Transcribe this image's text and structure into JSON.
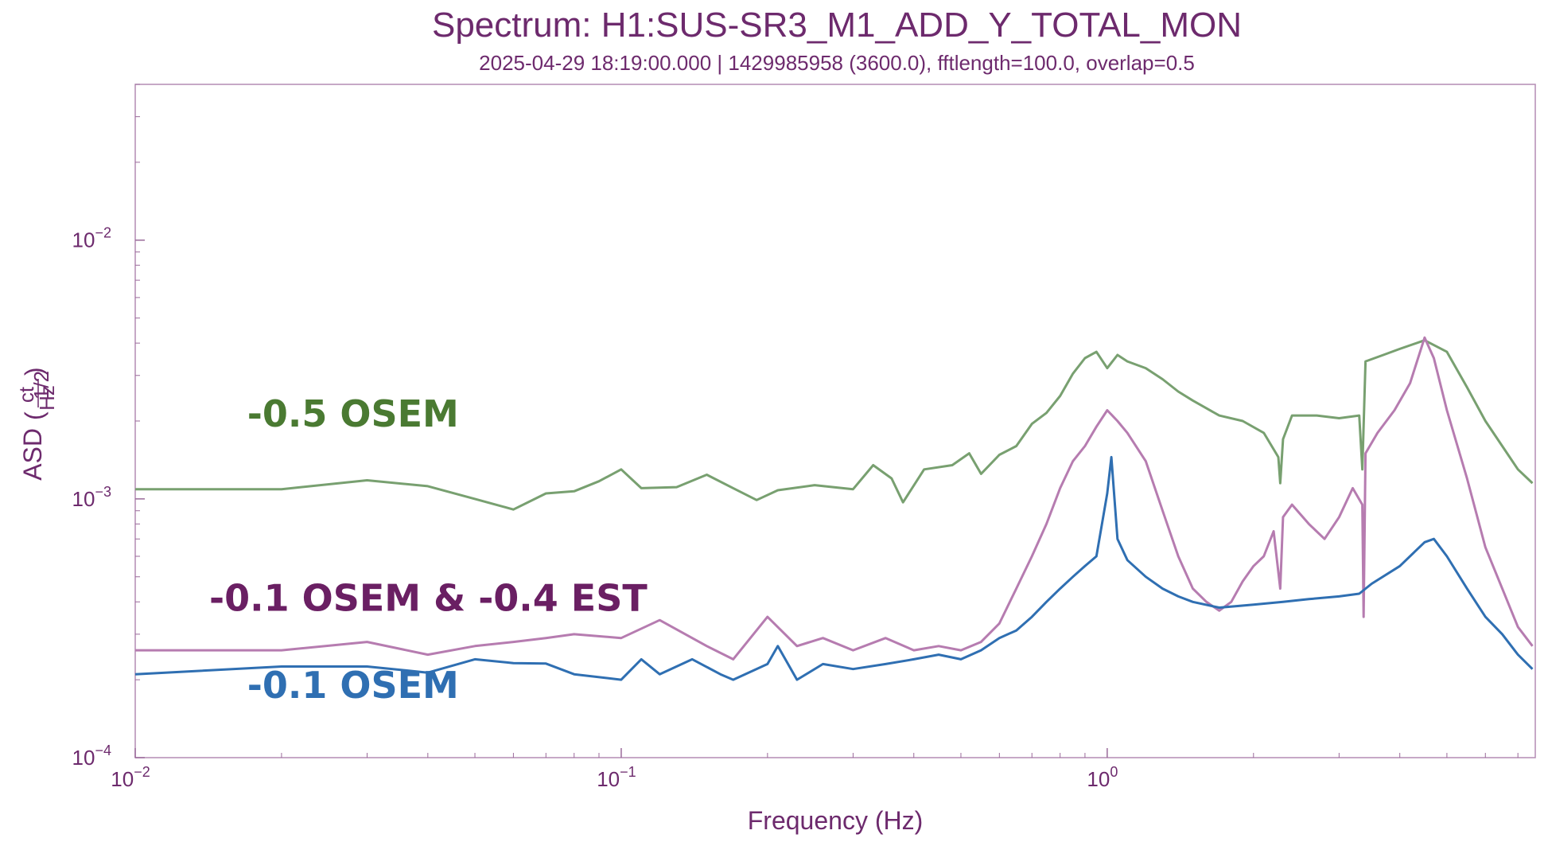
{
  "chart_data": {
    "type": "line",
    "title": "Spectrum: H1:SUS-SR3_M1_ADD_Y_TOTAL_MON",
    "subtitle": "2025-04-29 18:19:00.000 | 1429985958 (3600.0), fftlength=100.0, overlap=0.5",
    "xlabel": "Frequency (Hz)",
    "ylabel": "ASD",
    "ylabel_unit": {
      "numerator": "ct",
      "denominator": "Hz",
      "exponent": "1/2"
    },
    "x_scale": "log",
    "y_scale": "log",
    "xlim": [
      0.01,
      7.6
    ],
    "ylim": [
      0.0001,
      0.04
    ],
    "x_ticks": [
      {
        "value": 0.01,
        "base": "10",
        "exp": "−2"
      },
      {
        "value": 0.1,
        "base": "10",
        "exp": "−1"
      },
      {
        "value": 1,
        "base": "10",
        "exp": "0"
      }
    ],
    "y_ticks": [
      {
        "value": 0.0001,
        "base": "10",
        "exp": "−4"
      },
      {
        "value": 0.001,
        "base": "10",
        "exp": "−3"
      },
      {
        "value": 0.01,
        "base": "10",
        "exp": "−2"
      }
    ],
    "grid": false,
    "annotations": [
      {
        "text": "-0.5 OSEM",
        "color": "#4a7a32",
        "x": 0.017,
        "y": 0.0019
      },
      {
        "text": "-0.1 OSEM  &  -0.4 EST",
        "color": "#6a1f63",
        "x": 0.0142,
        "y": 0.00037
      },
      {
        "text": "-0.1 OSEM",
        "color": "#2f6fb2",
        "x": 0.017,
        "y": 0.00017
      }
    ],
    "series": [
      {
        "color": "#78a070",
        "points": [
          [
            0.01,
            0.00109
          ],
          [
            0.02,
            0.00109
          ],
          [
            0.03,
            0.00118
          ],
          [
            0.04,
            0.00112
          ],
          [
            0.05,
            0.001
          ],
          [
            0.06,
            0.00091
          ],
          [
            0.07,
            0.00105
          ],
          [
            0.08,
            0.00107
          ],
          [
            0.09,
            0.00117
          ],
          [
            0.1,
            0.0013
          ],
          [
            0.11,
            0.0011
          ],
          [
            0.13,
            0.00111
          ],
          [
            0.15,
            0.00124
          ],
          [
            0.17,
            0.0011
          ],
          [
            0.19,
            0.00099
          ],
          [
            0.21,
            0.00108
          ],
          [
            0.25,
            0.00113
          ],
          [
            0.3,
            0.00109
          ],
          [
            0.33,
            0.00135
          ],
          [
            0.36,
            0.0012
          ],
          [
            0.38,
            0.00097
          ],
          [
            0.42,
            0.0013
          ],
          [
            0.48,
            0.00135
          ],
          [
            0.52,
            0.0015
          ],
          [
            0.55,
            0.00125
          ],
          [
            0.6,
            0.00148
          ],
          [
            0.65,
            0.0016
          ],
          [
            0.7,
            0.00195
          ],
          [
            0.75,
            0.00215
          ],
          [
            0.8,
            0.0025
          ],
          [
            0.85,
            0.00305
          ],
          [
            0.9,
            0.0035
          ],
          [
            0.95,
            0.0037
          ],
          [
            1.0,
            0.0032
          ],
          [
            1.05,
            0.0036
          ],
          [
            1.1,
            0.0034
          ],
          [
            1.2,
            0.0032
          ],
          [
            1.3,
            0.0029
          ],
          [
            1.4,
            0.0026
          ],
          [
            1.5,
            0.0024
          ],
          [
            1.7,
            0.0021
          ],
          [
            1.9,
            0.002
          ],
          [
            2.1,
            0.0018
          ],
          [
            2.25,
            0.00145
          ],
          [
            2.27,
            0.00115
          ],
          [
            2.3,
            0.0017
          ],
          [
            2.4,
            0.0021
          ],
          [
            2.7,
            0.0021
          ],
          [
            3.0,
            0.00205
          ],
          [
            3.3,
            0.0021
          ],
          [
            3.35,
            0.0013
          ],
          [
            3.4,
            0.0034
          ],
          [
            3.7,
            0.0036
          ],
          [
            4.0,
            0.0038
          ],
          [
            4.5,
            0.0041
          ],
          [
            5.0,
            0.0037
          ],
          [
            5.5,
            0.0027
          ],
          [
            6.0,
            0.002
          ],
          [
            6.5,
            0.0016
          ],
          [
            7.0,
            0.0013
          ],
          [
            7.5,
            0.00115
          ]
        ]
      },
      {
        "color": "#b67cb0",
        "points": [
          [
            0.01,
            0.00026
          ],
          [
            0.02,
            0.00026
          ],
          [
            0.03,
            0.00028
          ],
          [
            0.04,
            0.00025
          ],
          [
            0.05,
            0.00027
          ],
          [
            0.06,
            0.00028
          ],
          [
            0.07,
            0.00029
          ],
          [
            0.08,
            0.0003
          ],
          [
            0.1,
            0.00029
          ],
          [
            0.12,
            0.00034
          ],
          [
            0.15,
            0.00027
          ],
          [
            0.17,
            0.00024
          ],
          [
            0.2,
            0.00035
          ],
          [
            0.23,
            0.00027
          ],
          [
            0.26,
            0.00029
          ],
          [
            0.3,
            0.00026
          ],
          [
            0.35,
            0.00029
          ],
          [
            0.4,
            0.00026
          ],
          [
            0.45,
            0.00027
          ],
          [
            0.5,
            0.00026
          ],
          [
            0.55,
            0.00028
          ],
          [
            0.6,
            0.00033
          ],
          [
            0.65,
            0.00045
          ],
          [
            0.7,
            0.0006
          ],
          [
            0.75,
            0.0008
          ],
          [
            0.8,
            0.0011
          ],
          [
            0.85,
            0.0014
          ],
          [
            0.9,
            0.0016
          ],
          [
            0.95,
            0.0019
          ],
          [
            1.0,
            0.0022
          ],
          [
            1.05,
            0.002
          ],
          [
            1.1,
            0.0018
          ],
          [
            1.2,
            0.0014
          ],
          [
            1.3,
            0.0009
          ],
          [
            1.4,
            0.0006
          ],
          [
            1.5,
            0.00045
          ],
          [
            1.6,
            0.0004
          ],
          [
            1.7,
            0.00037
          ],
          [
            1.8,
            0.0004
          ],
          [
            1.9,
            0.00048
          ],
          [
            2.0,
            0.00055
          ],
          [
            2.1,
            0.0006
          ],
          [
            2.2,
            0.00075
          ],
          [
            2.27,
            0.00045
          ],
          [
            2.3,
            0.00085
          ],
          [
            2.4,
            0.00095
          ],
          [
            2.6,
            0.0008
          ],
          [
            2.8,
            0.0007
          ],
          [
            3.0,
            0.00085
          ],
          [
            3.2,
            0.0011
          ],
          [
            3.35,
            0.00095
          ],
          [
            3.37,
            0.00035
          ],
          [
            3.4,
            0.0015
          ],
          [
            3.6,
            0.0018
          ],
          [
            3.9,
            0.0022
          ],
          [
            4.2,
            0.0028
          ],
          [
            4.5,
            0.0042
          ],
          [
            4.7,
            0.0035
          ],
          [
            5.0,
            0.0022
          ],
          [
            5.5,
            0.0012
          ],
          [
            6.0,
            0.00065
          ],
          [
            6.5,
            0.00045
          ],
          [
            7.0,
            0.00032
          ],
          [
            7.5,
            0.00027
          ]
        ]
      },
      {
        "color": "#2f6fb2",
        "points": [
          [
            0.01,
            0.00021
          ],
          [
            0.02,
            0.000225
          ],
          [
            0.03,
            0.000225
          ],
          [
            0.04,
            0.000213
          ],
          [
            0.05,
            0.00024
          ],
          [
            0.06,
            0.000232
          ],
          [
            0.07,
            0.000231
          ],
          [
            0.08,
            0.00021
          ],
          [
            0.1,
            0.0002
          ],
          [
            0.11,
            0.00024
          ],
          [
            0.12,
            0.00021
          ],
          [
            0.14,
            0.00024
          ],
          [
            0.16,
            0.00021
          ],
          [
            0.17,
            0.0002
          ],
          [
            0.2,
            0.00023
          ],
          [
            0.21,
            0.00027
          ],
          [
            0.23,
            0.0002
          ],
          [
            0.26,
            0.00023
          ],
          [
            0.3,
            0.00022
          ],
          [
            0.35,
            0.00023
          ],
          [
            0.4,
            0.00024
          ],
          [
            0.45,
            0.00025
          ],
          [
            0.5,
            0.00024
          ],
          [
            0.55,
            0.00026
          ],
          [
            0.6,
            0.00029
          ],
          [
            0.65,
            0.00031
          ],
          [
            0.7,
            0.00035
          ],
          [
            0.75,
            0.0004
          ],
          [
            0.8,
            0.00045
          ],
          [
            0.85,
            0.0005
          ],
          [
            0.9,
            0.00055
          ],
          [
            0.95,
            0.0006
          ],
          [
            1.0,
            0.00105
          ],
          [
            1.02,
            0.00145
          ],
          [
            1.05,
            0.0007
          ],
          [
            1.1,
            0.00058
          ],
          [
            1.2,
            0.0005
          ],
          [
            1.3,
            0.00045
          ],
          [
            1.4,
            0.00042
          ],
          [
            1.5,
            0.0004
          ],
          [
            1.7,
            0.00038
          ],
          [
            2.0,
            0.00039
          ],
          [
            2.3,
            0.0004
          ],
          [
            2.6,
            0.00041
          ],
          [
            3.0,
            0.00042
          ],
          [
            3.3,
            0.00043
          ],
          [
            3.5,
            0.00047
          ],
          [
            4.0,
            0.00055
          ],
          [
            4.5,
            0.00068
          ],
          [
            4.7,
            0.0007
          ],
          [
            5.0,
            0.0006
          ],
          [
            5.5,
            0.00045
          ],
          [
            6.0,
            0.00035
          ],
          [
            6.5,
            0.0003
          ],
          [
            7.0,
            0.00025
          ],
          [
            7.5,
            0.00022
          ]
        ]
      }
    ]
  }
}
